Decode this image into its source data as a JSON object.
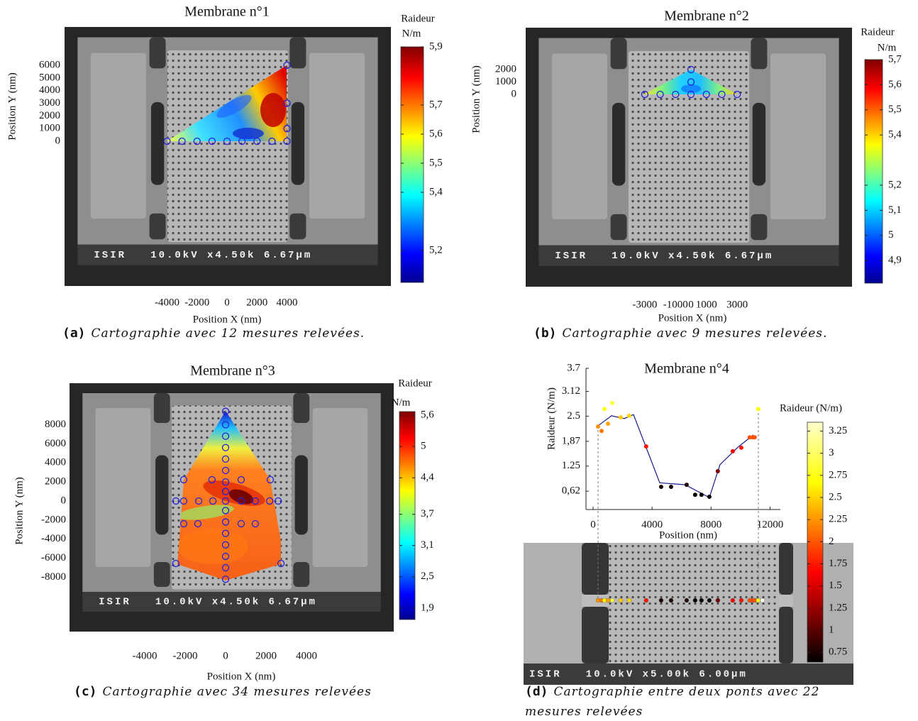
{
  "chart_data": [
    {
      "type": "map",
      "caption_label": "(a)",
      "caption": "Cartographie avec 12 mesures relevées.",
      "title": "Membrane n°1",
      "xlabel": "Position X (nm)",
      "ylabel": "Position Y (nm)",
      "xlim": [
        -10840,
        10935
      ],
      "ylim": [
        -11440,
        9030
      ],
      "xticks": [
        -4000,
        -2000,
        0,
        2000,
        4000
      ],
      "yticks": [
        0,
        1000,
        2000,
        3000,
        4000,
        5000,
        6000
      ],
      "sem_label": "ISIR   10.0kV x4.50k 6.67µm",
      "colorbar": {
        "title": "Raideur",
        "unit": "N/m",
        "colormap": "jet",
        "lim": [
          5.09,
          5.9
        ],
        "ticks": [
          {
            "value": 5.9,
            "label": "5,9"
          },
          {
            "value": 5.7,
            "label": "5,7"
          },
          {
            "value": 5.6,
            "label": "5,6"
          },
          {
            "value": 5.5,
            "label": "5,5"
          },
          {
            "value": 5.4,
            "label": "5,4"
          },
          {
            "value": 5.2,
            "label": "5,2"
          }
        ]
      },
      "points": {
        "color": "#2222dd",
        "x": [
          -4000,
          -3000,
          -2000,
          -1000,
          0,
          1000,
          2000,
          3000,
          4000,
          4000,
          4000,
          4000
        ],
        "y": [
          0,
          0,
          0,
          0,
          0,
          0,
          0,
          0,
          0,
          1000,
          3000,
          6000
        ]
      }
    },
    {
      "type": "map",
      "caption_label": "(b)",
      "caption": "Cartographie avec 9 mesures relevées.",
      "title": "Membrane n°2",
      "xlabel": "Position X (nm)",
      "ylabel": "Position Y (nm)",
      "xlim": [
        -10737,
        10461
      ],
      "ylim": [
        -15486,
        5371
      ],
      "xticks": [
        -3000,
        -1000,
        0,
        1000,
        3000
      ],
      "yticks": [
        0,
        1000,
        2000
      ],
      "sem_label": "ISIR   10.0kV x4.50k 6.67µm",
      "colorbar": {
        "title": "Raideur",
        "unit": "N/m",
        "colormap": "jet",
        "lim": [
          4.81,
          5.7
        ],
        "ticks": [
          {
            "value": 5.7,
            "label": "5,7"
          },
          {
            "value": 5.6,
            "label": "5,6"
          },
          {
            "value": 5.5,
            "label": "5,5"
          },
          {
            "value": 5.4,
            "label": "5,4"
          },
          {
            "value": 5.2,
            "label": "5,2"
          },
          {
            "value": 5.1,
            "label": "5,1"
          },
          5,
          {
            "value": 4.9,
            "label": "4,9"
          }
        ]
      },
      "points": {
        "color": "#2222dd",
        "x": [
          -3000,
          -2000,
          -1000,
          0,
          1000,
          2000,
          3000,
          0,
          0
        ],
        "y": [
          0,
          0,
          0,
          0,
          0,
          0,
          0,
          1000,
          2000
        ]
      }
    },
    {
      "type": "map",
      "caption_label": "(c)",
      "caption": "Cartographie avec 34 mesures relevées",
      "title": "Membrane n°3",
      "xlabel": "Position X (nm)",
      "ylabel": "Position Y (nm)",
      "xlim": [
        -7719,
        8316
      ],
      "ylim": [
        -13690,
        12351
      ],
      "xticks": [
        -4000,
        -2000,
        0,
        2000,
        4000
      ],
      "yticks": [
        8000,
        6000,
        4000,
        2000,
        0,
        -2000,
        -4000,
        -6000,
        -8000
      ],
      "sem_label": "ISIR   10.0kV x4.50k 6.67µm",
      "colorbar": {
        "title": "Raideur",
        "unit": "N/m",
        "colormap": "jet",
        "lim": [
          1.68,
          5.67
        ],
        "ticks": [
          {
            "value": 5.6,
            "label": "5,6"
          },
          5,
          {
            "value": 4.4,
            "label": "4,4"
          },
          {
            "value": 3.7,
            "label": "3,7"
          },
          {
            "value": 3.1,
            "label": "3,1"
          },
          {
            "value": 2.5,
            "label": "2,5"
          },
          {
            "value": 1.9,
            "label": "1,9"
          }
        ]
      },
      "points": {
        "color": "#2222dd",
        "x": [
          0,
          0,
          0,
          0,
          0,
          0,
          0,
          0,
          0,
          0,
          0,
          0,
          0,
          0,
          0,
          0,
          -2457,
          -2070,
          -1330,
          -630,
          770,
          1470,
          2180,
          2600,
          -2070,
          -670,
          770,
          2210,
          -2070,
          -1370,
          770,
          1470,
          -2460,
          2740
        ],
        "y": [
          9400,
          8000,
          6800,
          5600,
          4400,
          3200,
          2000,
          1000,
          0,
          -1000,
          -2200,
          -3400,
          -4600,
          -5800,
          -7000,
          -8200,
          0,
          0,
          0,
          0,
          0,
          0,
          0,
          0,
          2230,
          2230,
          2230,
          2230,
          -2380,
          -2380,
          -2380,
          -2380,
          -6550,
          -6550
        ]
      }
    },
    {
      "type": "scatter-line",
      "caption_label": "(d)",
      "caption": "Cartographie entre deux ponts avec 22 mesures relevées",
      "title": "Membrane n°4",
      "xlabel": "Position (nm)",
      "ylabel": "Raideur (N/m)",
      "xlim": [
        -480,
        12700
      ],
      "ylim": [
        0.16,
        3.7
      ],
      "xticks": [
        0,
        4000,
        8000,
        12000
      ],
      "yticks": [
        {
          "value": 0.62,
          "label": "0,62"
        },
        1.25,
        {
          "value": 1.87,
          "label": "1,87"
        },
        2.5,
        3.12,
        3.7
      ],
      "sem_label": "ISIR   10.0kV x5.00k 6.00µm",
      "colorbar": {
        "title": "Raideur (N/m)",
        "colormap": "hot",
        "lim": [
          0.64,
          3.35
        ],
        "ticks": [
          3.25,
          3,
          2.75,
          2.5,
          2.25,
          2,
          1.75,
          1.5,
          1.25,
          1,
          0.75
        ]
      },
      "points": {
        "x": [
          337,
          577,
          770,
          1010,
          1300,
          1875,
          2450,
          3600,
          4615,
          5290,
          6346,
          6920,
          7350,
          7885,
          8460,
          9470,
          10050,
          10620,
          10820,
          10960,
          11200,
          11490
        ],
        "values": [
          2.24,
          2.13,
          2.68,
          2.31,
          2.83,
          2.47,
          2.51,
          1.74,
          0.73,
          0.73,
          0.78,
          0.53,
          0.53,
          0.48,
          1.12,
          1.62,
          1.71,
          1.97,
          1.97,
          1.97,
          2.68,
          3.4
        ]
      },
      "line": {
        "color": "#1a1a8c",
        "x": [
          337,
          1250,
          2115,
          2740,
          4520,
          6250,
          7885,
          8600,
          9810,
          10865
        ],
        "values": [
          2.26,
          2.51,
          2.44,
          2.54,
          0.83,
          0.78,
          0.46,
          1.28,
          1.72,
          2.03
        ]
      }
    }
  ]
}
